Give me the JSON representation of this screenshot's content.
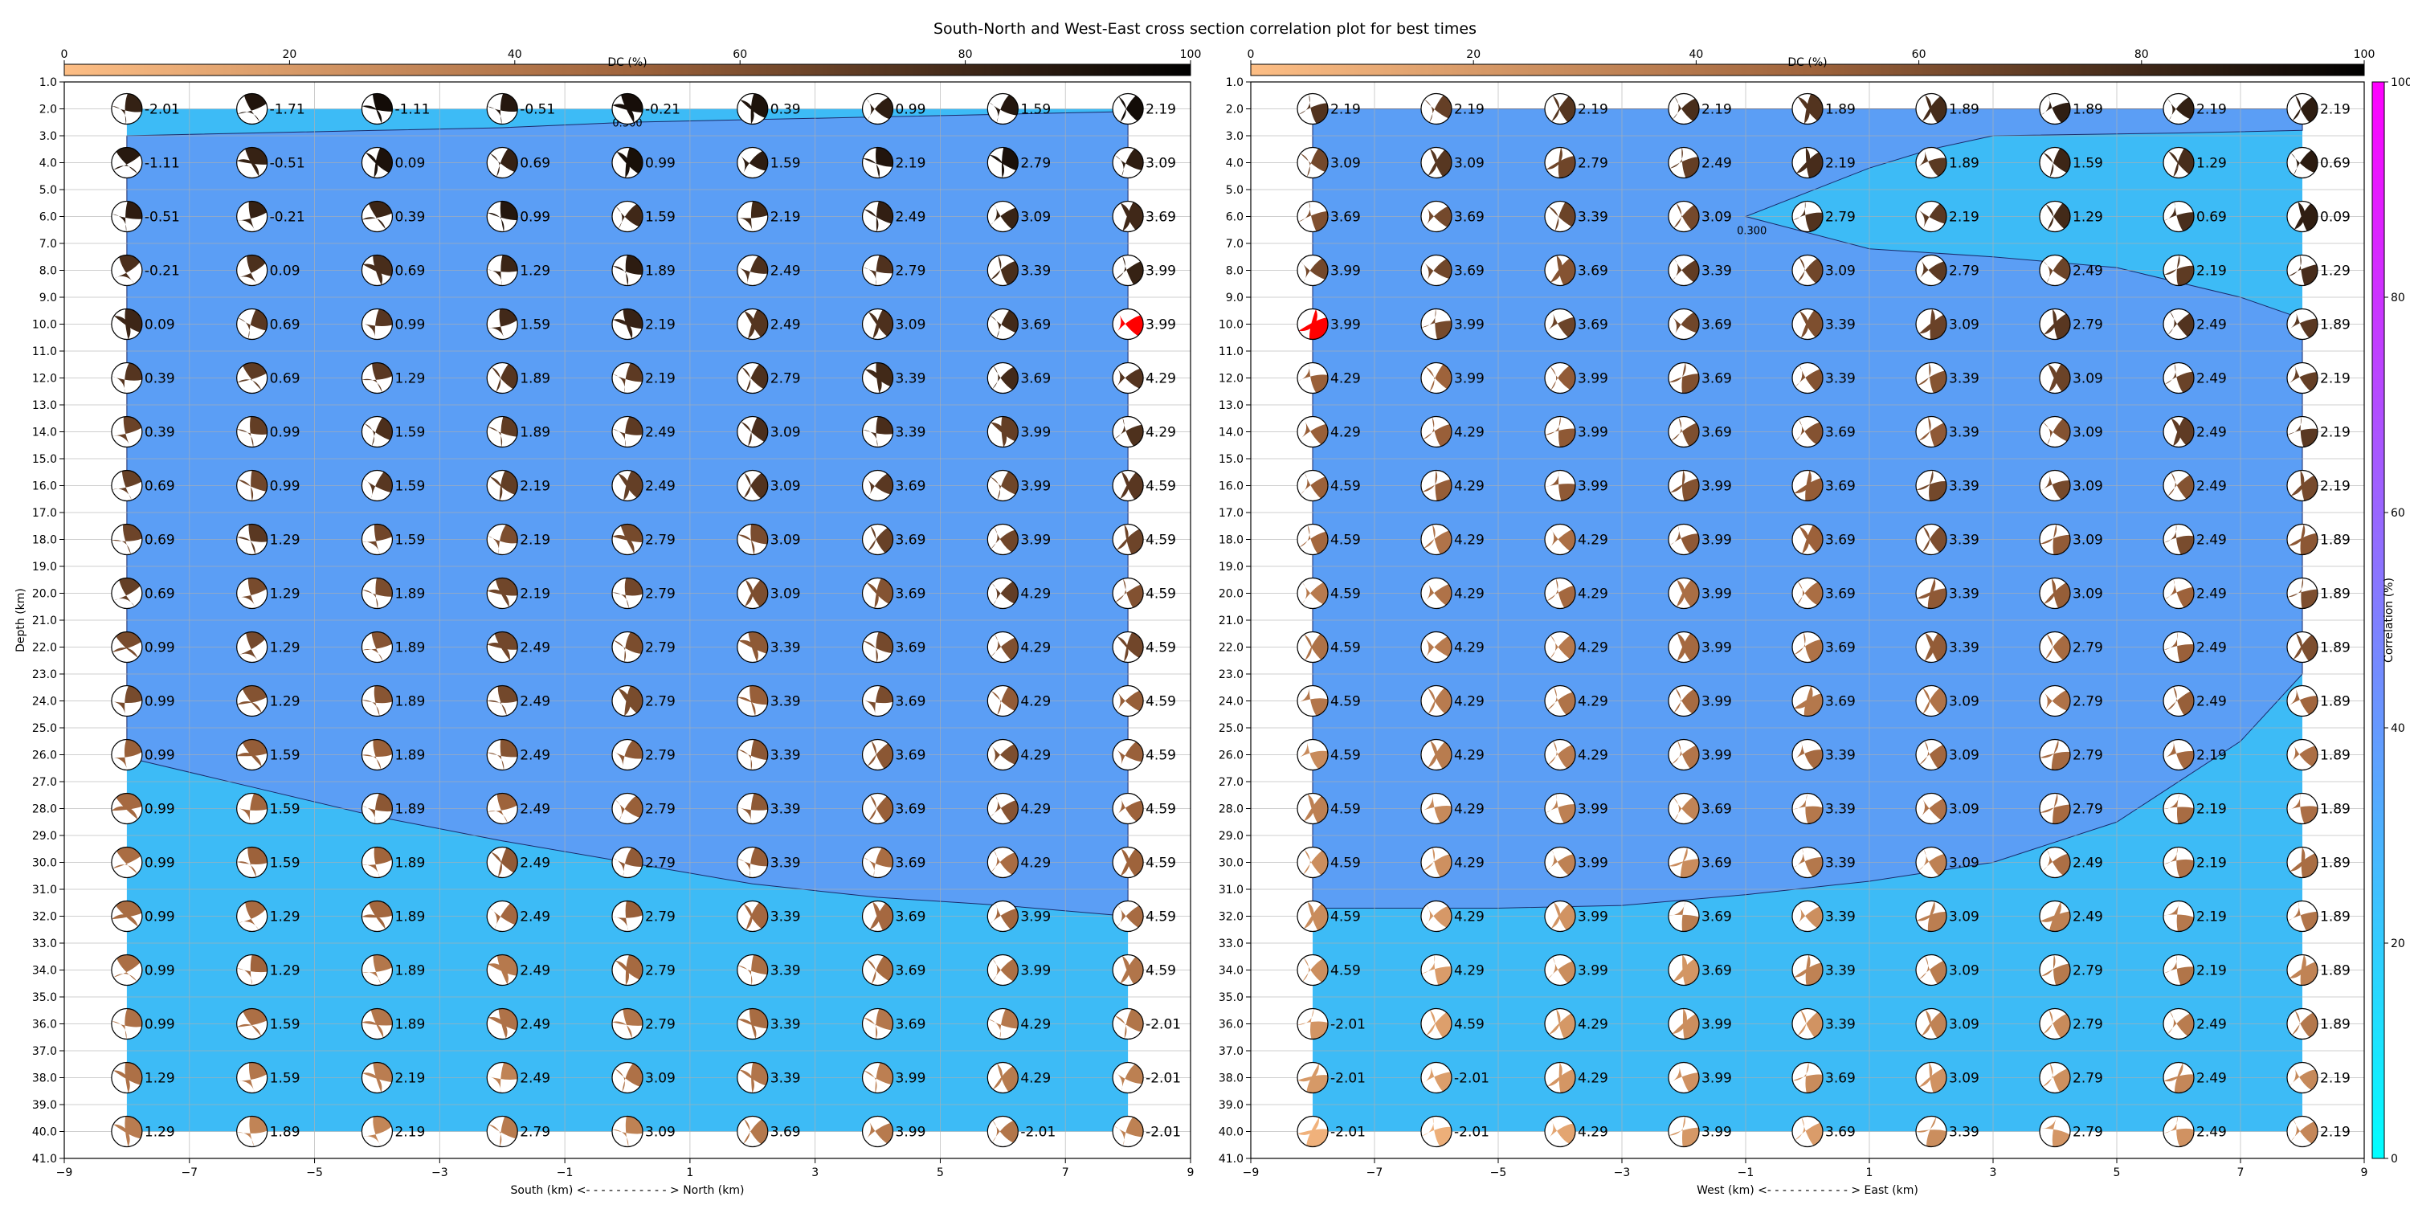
{
  "title": "South-North and West-East cross section correlation plot for best times",
  "colors": {
    "contour_high": "#5b9ef5",
    "contour_low": "#3dbbf6",
    "highlight": "#ff0000",
    "beach_white": "#ffffff",
    "corr_low": "#00ffff",
    "corr_high": "#ff00ff",
    "dc_low": "#fdbe85",
    "dc_mid": "#a0643c",
    "dc_high": "#000000"
  },
  "colorbars": {
    "dc": {
      "label": "DC (%)",
      "ticks": [
        "0",
        "20",
        "40",
        "60",
        "80",
        "100"
      ]
    },
    "corr": {
      "label": "Correlation (%)",
      "ticks": [
        "0",
        "20",
        "40",
        "60",
        "80",
        "100"
      ]
    }
  },
  "chart_data": [
    {
      "type": "scatter",
      "name": "south-north",
      "xlabel": "South (km) <- - - - - - - - - - - > North (km)",
      "ylabel": "Depth (km)",
      "xlim": [
        -9,
        9
      ],
      "ylim": [
        41,
        1
      ],
      "x_ticks": [
        -9,
        -7,
        -5,
        -3,
        -1,
        1,
        3,
        5,
        7,
        9
      ],
      "y_ticks": [
        1,
        2,
        3,
        4,
        5,
        6,
        7,
        8,
        9,
        10,
        11,
        12,
        13,
        14,
        15,
        16,
        17,
        18,
        19,
        20,
        21,
        22,
        23,
        24,
        25,
        26,
        27,
        28,
        29,
        30,
        31,
        32,
        33,
        34,
        35,
        36,
        37,
        38,
        39,
        40,
        41
      ],
      "x": [
        -8,
        -6,
        -4,
        -2,
        0,
        2,
        4,
        6,
        8
      ],
      "depths": [
        2,
        4,
        6,
        8,
        10,
        12,
        14,
        16,
        18,
        20,
        22,
        24,
        26,
        28,
        30,
        32,
        34,
        36,
        38,
        40
      ],
      "time_labels": [
        [
          "-2.01",
          "-1.71",
          "-1.11",
          "-0.51",
          "-0.21",
          "0.39",
          "0.99",
          "1.59",
          "2.19"
        ],
        [
          "-1.11",
          "-0.51",
          "0.09",
          "0.69",
          "0.99",
          "1.59",
          "2.19",
          "2.79",
          "3.09"
        ],
        [
          "-0.51",
          "-0.21",
          "0.39",
          "0.99",
          "1.59",
          "2.19",
          "2.49",
          "3.09",
          "3.69"
        ],
        [
          "-0.21",
          "0.09",
          "0.69",
          "1.29",
          "1.89",
          "2.49",
          "2.79",
          "3.39",
          "3.99"
        ],
        [
          "0.09",
          "0.69",
          "0.99",
          "1.59",
          "2.19",
          "2.49",
          "3.09",
          "3.69",
          "3.99"
        ],
        [
          "0.39",
          "0.69",
          "1.29",
          "1.89",
          "2.19",
          "2.79",
          "3.39",
          "3.69",
          "4.29"
        ],
        [
          "0.39",
          "0.99",
          "1.59",
          "1.89",
          "2.49",
          "3.09",
          "3.39",
          "3.99",
          "4.29"
        ],
        [
          "0.69",
          "0.99",
          "1.59",
          "2.19",
          "2.49",
          "3.09",
          "3.69",
          "3.99",
          "4.59"
        ],
        [
          "0.69",
          "1.29",
          "1.59",
          "2.19",
          "2.79",
          "3.09",
          "3.69",
          "3.99",
          "4.59"
        ],
        [
          "0.69",
          "1.29",
          "1.89",
          "2.19",
          "2.79",
          "3.09",
          "3.69",
          "4.29",
          "4.59"
        ],
        [
          "0.99",
          "1.29",
          "1.89",
          "2.49",
          "2.79",
          "3.39",
          "3.69",
          "4.29",
          "4.59"
        ],
        [
          "0.99",
          "1.29",
          "1.89",
          "2.49",
          "2.79",
          "3.39",
          "3.69",
          "4.29",
          "4.59"
        ],
        [
          "0.99",
          "1.59",
          "1.89",
          "2.49",
          "2.79",
          "3.39",
          "3.69",
          "4.29",
          "4.59"
        ],
        [
          "0.99",
          "1.59",
          "1.89",
          "2.49",
          "2.79",
          "3.39",
          "3.69",
          "4.29",
          "4.59"
        ],
        [
          "0.99",
          "1.59",
          "1.89",
          "2.49",
          "2.79",
          "3.39",
          "3.69",
          "4.29",
          "4.59"
        ],
        [
          "0.99",
          "1.29",
          "1.89",
          "2.49",
          "2.79",
          "3.39",
          "3.69",
          "3.99",
          "4.59"
        ],
        [
          "0.99",
          "1.29",
          "1.89",
          "2.49",
          "2.79",
          "3.39",
          "3.69",
          "3.99",
          "4.59"
        ],
        [
          "0.99",
          "1.59",
          "1.89",
          "2.49",
          "2.79",
          "3.39",
          "3.69",
          "4.29",
          "-2.01"
        ],
        [
          "1.29",
          "1.59",
          "2.19",
          "2.49",
          "3.09",
          "3.39",
          "3.99",
          "4.29",
          "-2.01"
        ],
        [
          "1.29",
          "1.89",
          "2.19",
          "2.79",
          "3.09",
          "3.69",
          "3.99",
          "-2.01",
          "-2.01"
        ]
      ],
      "highlight": {
        "x": 8,
        "depth": 10
      },
      "contour_label": "0.300",
      "contour_label_at": {
        "x": 0,
        "depth": 2.5
      },
      "contour_boundary": {
        "x": [
          -8,
          -6,
          -4,
          -2,
          0,
          2,
          4,
          6,
          8
        ],
        "upper_depth": [
          3.0,
          2.9,
          2.8,
          2.7,
          2.5,
          2.4,
          2.3,
          2.2,
          2.1
        ],
        "lower_depth": [
          26.1,
          27.2,
          28.3,
          29.2,
          30.0,
          30.8,
          31.3,
          31.6,
          32.0
        ]
      }
    },
    {
      "type": "scatter",
      "name": "west-east",
      "xlabel": "West (km) <- - - - - - - - - - - > East (km)",
      "ylabel": "",
      "xlim": [
        -9,
        9
      ],
      "ylim": [
        41,
        1
      ],
      "x_ticks": [
        -9,
        -7,
        -5,
        -3,
        -1,
        1,
        3,
        5,
        7,
        9
      ],
      "y_ticks": [
        1,
        2,
        3,
        4,
        5,
        6,
        7,
        8,
        9,
        10,
        11,
        12,
        13,
        14,
        15,
        16,
        17,
        18,
        19,
        20,
        21,
        22,
        23,
        24,
        25,
        26,
        27,
        28,
        29,
        30,
        31,
        32,
        33,
        34,
        35,
        36,
        37,
        38,
        39,
        40,
        41
      ],
      "x": [
        -8,
        -6,
        -4,
        -2,
        0,
        2,
        4,
        6,
        8
      ],
      "depths": [
        2,
        4,
        6,
        8,
        10,
        12,
        14,
        16,
        18,
        20,
        22,
        24,
        26,
        28,
        30,
        32,
        34,
        36,
        38,
        40
      ],
      "time_labels": [
        [
          "2.19",
          "2.19",
          "2.19",
          "2.19",
          "1.89",
          "1.89",
          "1.89",
          "2.19",
          "2.19"
        ],
        [
          "3.09",
          "3.09",
          "2.79",
          "2.49",
          "2.19",
          "1.89",
          "1.59",
          "1.29",
          "0.69"
        ],
        [
          "3.69",
          "3.69",
          "3.39",
          "3.09",
          "2.79",
          "2.19",
          "1.29",
          "0.69",
          "0.09"
        ],
        [
          "3.99",
          "3.69",
          "3.69",
          "3.39",
          "3.09",
          "2.79",
          "2.49",
          "2.19",
          "1.29"
        ],
        [
          "3.99",
          "3.99",
          "3.69",
          "3.69",
          "3.39",
          "3.09",
          "2.79",
          "2.49",
          "1.89"
        ],
        [
          "4.29",
          "3.99",
          "3.99",
          "3.69",
          "3.39",
          "3.39",
          "3.09",
          "2.49",
          "2.19"
        ],
        [
          "4.29",
          "4.29",
          "3.99",
          "3.69",
          "3.69",
          "3.39",
          "3.09",
          "2.49",
          "2.19"
        ],
        [
          "4.59",
          "4.29",
          "3.99",
          "3.99",
          "3.69",
          "3.39",
          "3.09",
          "2.49",
          "2.19"
        ],
        [
          "4.59",
          "4.29",
          "4.29",
          "3.99",
          "3.69",
          "3.39",
          "3.09",
          "2.49",
          "1.89"
        ],
        [
          "4.59",
          "4.29",
          "4.29",
          "3.99",
          "3.69",
          "3.39",
          "3.09",
          "2.49",
          "1.89"
        ],
        [
          "4.59",
          "4.29",
          "4.29",
          "3.99",
          "3.69",
          "3.39",
          "2.79",
          "2.49",
          "1.89"
        ],
        [
          "4.59",
          "4.29",
          "4.29",
          "3.99",
          "3.69",
          "3.09",
          "2.79",
          "2.49",
          "1.89"
        ],
        [
          "4.59",
          "4.29",
          "4.29",
          "3.99",
          "3.39",
          "3.09",
          "2.79",
          "2.19",
          "1.89"
        ],
        [
          "4.59",
          "4.29",
          "3.99",
          "3.69",
          "3.39",
          "3.09",
          "2.79",
          "2.19",
          "1.89"
        ],
        [
          "4.59",
          "4.29",
          "3.99",
          "3.69",
          "3.39",
          "3.09",
          "2.49",
          "2.19",
          "1.89"
        ],
        [
          "4.59",
          "4.29",
          "3.99",
          "3.69",
          "3.39",
          "3.09",
          "2.49",
          "2.19",
          "1.89"
        ],
        [
          "4.59",
          "4.29",
          "3.99",
          "3.69",
          "3.39",
          "3.09",
          "2.79",
          "2.19",
          "1.89"
        ],
        [
          "-2.01",
          "4.59",
          "4.29",
          "3.99",
          "3.39",
          "3.09",
          "2.79",
          "2.49",
          "1.89"
        ],
        [
          "-2.01",
          "-2.01",
          "4.29",
          "3.99",
          "3.69",
          "3.09",
          "2.79",
          "2.49",
          "2.19"
        ],
        [
          "-2.01",
          "-2.01",
          "4.29",
          "3.99",
          "3.69",
          "3.39",
          "2.79",
          "2.49",
          "2.19"
        ]
      ],
      "highlight": {
        "x": -8,
        "depth": 10
      },
      "contour_label": "0.300",
      "contour_label_at": {
        "x": -0.9,
        "depth": 6.5
      },
      "contour_polygon": [
        [
          -8,
          2
        ],
        [
          8,
          2
        ],
        [
          8,
          2.8
        ],
        [
          6,
          2.9
        ],
        [
          3,
          3
        ],
        [
          2,
          3.5
        ],
        [
          1,
          4.2
        ],
        [
          -1,
          6
        ],
        [
          1,
          7.2
        ],
        [
          3,
          7.5
        ],
        [
          5,
          7.9
        ],
        [
          7,
          9.0
        ],
        [
          8,
          9.8
        ],
        [
          8,
          23.0
        ],
        [
          7,
          25.5
        ],
        [
          5,
          28.5
        ],
        [
          3,
          30.0
        ],
        [
          1,
          30.7
        ],
        [
          -1,
          31.2
        ],
        [
          -3,
          31.6
        ],
        [
          -5,
          31.7
        ],
        [
          -8,
          31.7
        ]
      ]
    }
  ]
}
